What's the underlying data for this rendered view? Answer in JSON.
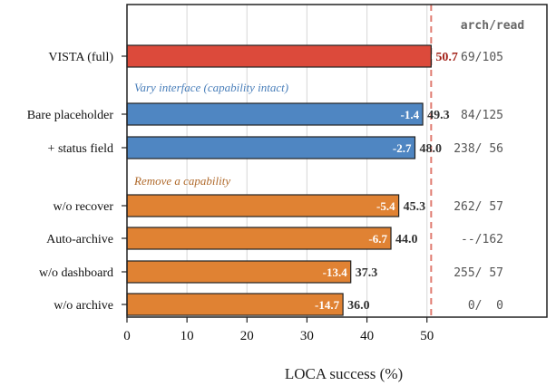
{
  "chart_data": {
    "type": "bar",
    "orientation": "horizontal",
    "xlabel": "LOCA success (%)",
    "ylabel": "",
    "xlim": [
      0,
      70
    ],
    "xticks": [
      0,
      10,
      20,
      30,
      40,
      50
    ],
    "grid": "vertical",
    "reference_line": {
      "x": 50.7,
      "style": "dashed",
      "color": "#e07a70"
    },
    "side_column_header": "arch/read",
    "categories": [
      "VISTA (full)",
      "Bare placeholder",
      "+ status field",
      "w/o recover",
      "Auto-archive",
      "w/o dashboard",
      "w/o archive"
    ],
    "values": [
      50.7,
      49.3,
      48.0,
      45.3,
      44.0,
      37.3,
      36.0
    ],
    "deltas": [
      "",
      "-1.4",
      "-2.7",
      "-5.4",
      "-6.7",
      "-13.4",
      "-14.7"
    ],
    "value_labels": [
      "50.7",
      "49.3",
      "48.0",
      "45.3",
      "44.0",
      "37.3",
      "36.0"
    ],
    "arch_read": [
      "69/105",
      "84/125",
      "238/ 56",
      "262/ 57",
      "--/162",
      "255/ 57",
      "0/  0"
    ],
    "groups": [
      {
        "label": "",
        "color": "#dc4a3b",
        "members": [
          0
        ]
      },
      {
        "label": "Vary interface (capability intact)",
        "color": "#4f86c2",
        "text_color": "#4a7fba",
        "members": [
          1,
          2
        ]
      },
      {
        "label": "Remove a capability",
        "color": "#e08233",
        "text_color": "#b06a2c",
        "members": [
          3,
          4,
          5,
          6
        ]
      }
    ],
    "colors": {
      "baseline_value_text": "#a3231a",
      "value_text": "#333333",
      "delta_text": "#ffffff",
      "side_text": "#555555",
      "grid": "#dddddd"
    }
  }
}
